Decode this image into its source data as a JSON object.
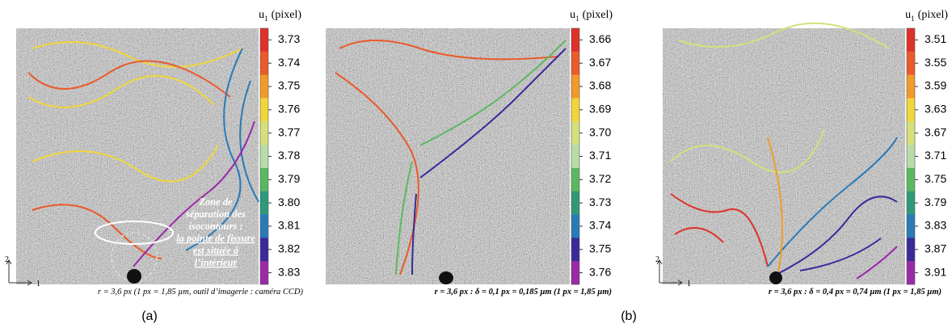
{
  "panels": [
    {
      "unit_label": {
        "symbol": "u",
        "subscript": "1",
        "unit": "(pixel)"
      },
      "levels": [
        "3.73",
        "3.74",
        "3.75",
        "3.76",
        "3.77",
        "3.78",
        "3.79",
        "3.80",
        "3.81",
        "3.82",
        "3.83"
      ],
      "axes": {
        "vertical": "2",
        "horizontal": "1"
      },
      "annotation": {
        "lines": [
          "Zone de",
          "séparation des",
          "isocontours :"
        ],
        "underlined_lines": [
          "la pointe de fissure",
          "est située à",
          "l’intérieur"
        ]
      },
      "caption": "r = 3,6 px (1 px = 1,85 µm, outil d’imagerie : caméra CCD)"
    },
    {
      "unit_label": {
        "symbol": "u",
        "subscript": "1",
        "unit": "(pixel)"
      },
      "levels": [
        "3.66",
        "3.67",
        "3.68",
        "3.69",
        "3.70",
        "3.71",
        "3.72",
        "3.73",
        "3.74",
        "3.75",
        "3.76"
      ],
      "caption": "r = 3,6 px : δ = 0,1 px = 0,185 µm (1 px = 1,85 µm)"
    },
    {
      "unit_label": {
        "symbol": "u",
        "subscript": "1",
        "unit": "(pixel)"
      },
      "levels": [
        "3.51",
        "3.55",
        "3.59",
        "3.63",
        "3.67",
        "3.71",
        "3.75",
        "3.79",
        "3.83",
        "3.87",
        "3.91"
      ],
      "axes": {
        "vertical": "2",
        "horizontal": "1"
      },
      "caption": "r = 3,6 px : δ = 0,4 px = 0,74 µm (1 px = 1,85 µm)"
    }
  ],
  "colorbar_colors": [
    "#e0302a",
    "#ea5a2a",
    "#f29a2a",
    "#f0d63a",
    "#d6e07a",
    "#b8dca8",
    "#5cb860",
    "#2e9a7a",
    "#2a7ab8",
    "#3a2a9a",
    "#9a2aa8"
  ],
  "subfigure_labels": [
    "(a)",
    "(b)"
  ]
}
